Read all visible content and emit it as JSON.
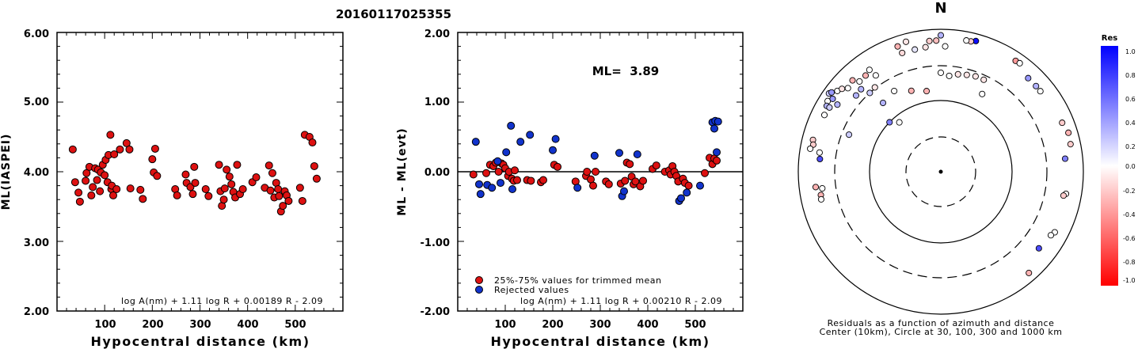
{
  "figure_title": "20160117025355",
  "chart_data": [
    {
      "type": "scatter",
      "xlabel": "Hypocentral distance (km)",
      "ylabel": "ML(IASPEI)",
      "xlim": [
        0,
        600
      ],
      "ylim": [
        2.0,
        6.0
      ],
      "x_ticks": [
        100,
        200,
        300,
        400,
        500
      ],
      "y_ticks": [
        "2.00",
        "3.00",
        "4.00",
        "5.00",
        "6.00"
      ],
      "formula": "log A(nm) + 1.11 log R + 0.00189 R - 2.09",
      "marker_color": "#dd1111",
      "series": [
        {
          "x": [
            33,
            38,
            45,
            48,
            60,
            62,
            68,
            72,
            75,
            80,
            84,
            86,
            90,
            92,
            96,
            100,
            102,
            106,
            108,
            112,
            114,
            115,
            118,
            120,
            125,
            132,
            146,
            152,
            154,
            175,
            180,
            200,
            203,
            206,
            210,
            248,
            252,
            270,
            272,
            280,
            285,
            288,
            290,
            312,
            318,
            340,
            343,
            346,
            350,
            352,
            356,
            362,
            366,
            370,
            374,
            378,
            384,
            390,
            410,
            418,
            436,
            445,
            448,
            452,
            456,
            460,
            464,
            466,
            470,
            474,
            478,
            482,
            486,
            510,
            515,
            520,
            530,
            536,
            540,
            545
          ],
          "y": [
            4.32,
            3.85,
            3.7,
            3.57,
            3.87,
            3.98,
            4.07,
            3.66,
            3.78,
            4.05,
            3.88,
            4.03,
            3.72,
            3.99,
            4.1,
            3.95,
            4.17,
            3.85,
            4.24,
            4.53,
            3.75,
            3.8,
            3.66,
            4.25,
            3.75,
            4.32,
            4.41,
            4.32,
            3.76,
            3.74,
            3.61,
            4.18,
            3.99,
            4.33,
            3.94,
            3.75,
            3.66,
            3.96,
            3.84,
            3.78,
            3.68,
            4.07,
            3.84,
            3.75,
            3.65,
            4.1,
            3.72,
            3.51,
            3.6,
            3.76,
            4.03,
            3.93,
            3.82,
            3.71,
            3.63,
            4.1,
            3.68,
            3.75,
            3.85,
            3.92,
            3.77,
            4.09,
            3.73,
            3.98,
            3.63,
            3.84,
            3.75,
            3.65,
            3.43,
            3.51,
            3.72,
            3.66,
            3.58,
            3.77,
            3.58,
            4.53,
            4.5,
            4.42,
            4.08,
            3.9
          ]
        }
      ]
    },
    {
      "type": "scatter",
      "xlabel": "Hypocentral distance (km)",
      "ylabel": "ML - ML(evt)",
      "xlim": [
        0,
        600
      ],
      "ylim": [
        -2.0,
        2.0
      ],
      "x_ticks": [
        100,
        200,
        300,
        400,
        500
      ],
      "y_ticks": [
        "-2.00",
        "-1.00",
        "0.00",
        "1.00",
        "2.00"
      ],
      "annotation": "ML=  3.89",
      "formula": "log A(nm) + 1.11 log R + 0.00210 R - 2.09",
      "reference_line_y": 0,
      "legend_position": "bottom-left",
      "series": [
        {
          "name": "25%-75% values for trimmed mean",
          "color": "#dd1111",
          "x": [
            33,
            60,
            68,
            75,
            80,
            86,
            92,
            96,
            100,
            106,
            108,
            114,
            118,
            120,
            125,
            146,
            154,
            175,
            180,
            203,
            210,
            248,
            270,
            272,
            280,
            285,
            290,
            312,
            318,
            343,
            352,
            356,
            362,
            366,
            370,
            374,
            384,
            390,
            410,
            418,
            436,
            445,
            448,
            452,
            456,
            460,
            464,
            474,
            478,
            486,
            520,
            530,
            536,
            540,
            545
          ],
          "y": [
            -0.04,
            -0.02,
            0.1,
            0.08,
            0.13,
            0.0,
            0.12,
            0.1,
            0.05,
            -0.06,
            0.0,
            -0.1,
            -0.13,
            0.02,
            -0.12,
            -0.12,
            -0.13,
            -0.15,
            -0.12,
            0.1,
            0.07,
            -0.14,
            -0.06,
            0.0,
            -0.11,
            -0.2,
            0.0,
            -0.14,
            -0.18,
            -0.17,
            -0.13,
            0.13,
            0.11,
            -0.07,
            -0.18,
            -0.14,
            -0.21,
            -0.13,
            0.04,
            0.09,
            0.0,
            0.02,
            -0.04,
            0.08,
            0.0,
            -0.06,
            -0.14,
            -0.1,
            -0.16,
            -0.2,
            -0.02,
            0.2,
            0.11,
            0.19,
            0.16
          ]
        },
        {
          "name": "Rejected values",
          "color": "#1133cc",
          "x": [
            38,
            45,
            48,
            62,
            72,
            84,
            90,
            102,
            112,
            115,
            132,
            152,
            200,
            206,
            252,
            288,
            340,
            346,
            350,
            378,
            466,
            470,
            482,
            510,
            536,
            540,
            542,
            545,
            548
          ],
          "y": [
            0.43,
            -0.18,
            -0.32,
            -0.19,
            -0.23,
            0.15,
            -0.16,
            0.28,
            0.66,
            -0.25,
            0.43,
            0.53,
            0.31,
            0.47,
            -0.23,
            0.23,
            0.27,
            -0.35,
            -0.28,
            0.25,
            -0.42,
            -0.38,
            -0.3,
            -0.2,
            0.71,
            0.62,
            0.73,
            0.28,
            0.72
          ]
        }
      ]
    },
    {
      "type": "scatter",
      "subtype": "polar residual map",
      "north_label": "N",
      "caption_line1": "Residuals as a function of azimuth and distance",
      "caption_line2": "Center (10km), Circle at 30, 100, 300 and 1000 km",
      "colorbar": {
        "title": "Res",
        "range": [
          -1.0,
          1.0
        ],
        "tick_labels": [
          "1.0",
          "0.8",
          "0.6",
          "0.4",
          "0.2",
          "0.0",
          "-0.2",
          "-0.4",
          "-0.6",
          "-0.8",
          "-1.0"
        ],
        "high_color": "#0000ff",
        "low_color": "#ff0000",
        "mid_color": "#ffffff"
      },
      "stations": [
        {
          "azimuth": 0,
          "distance_km": 820,
          "res": 0.3
        },
        {
          "azimuth": 353,
          "distance_km": 570,
          "res": -0.1
        },
        {
          "azimuth": 2,
          "distance_km": 570,
          "res": 0.0
        },
        {
          "azimuth": 342,
          "distance_km": 560,
          "res": -0.15
        },
        {
          "azimuth": 348,
          "distance_km": 560,
          "res": 0.1
        },
        {
          "azimuth": 355,
          "distance_km": 690,
          "res": -0.2
        },
        {
          "azimuth": 358,
          "distance_km": 690,
          "res": -0.25
        },
        {
          "azimuth": 341,
          "distance_km": 720,
          "res": -0.3
        },
        {
          "azimuth": 345,
          "distance_km": 770,
          "res": -0.1
        },
        {
          "azimuth": 15,
          "distance_km": 790,
          "res": 0.95
        },
        {
          "azimuth": 13,
          "distance_km": 750,
          "res": -0.2
        },
        {
          "azimuth": 11,
          "distance_km": 750,
          "res": 0.0
        },
        {
          "azimuth": 34,
          "distance_km": 750,
          "res": -0.4
        },
        {
          "azimuth": 36,
          "distance_km": 760,
          "res": 0.0
        },
        {
          "azimuth": 0,
          "distance_km": 240,
          "res": 0.0
        },
        {
          "azimuth": 5,
          "distance_km": 220,
          "res": 0.0
        },
        {
          "azimuth": 10,
          "distance_km": 240,
          "res": -0.1
        },
        {
          "azimuth": 15,
          "distance_km": 250,
          "res": -0.1
        },
        {
          "azimuth": 20,
          "distance_km": 260,
          "res": -0.1
        },
        {
          "azimuth": 25,
          "distance_km": 260,
          "res": -0.1
        },
        {
          "azimuth": 340,
          "distance_km": 160,
          "res": -0.3
        },
        {
          "azimuth": 350,
          "distance_km": 140,
          "res": -0.3
        },
        {
          "azimuth": 28,
          "distance_km": 170,
          "res": 0.0
        },
        {
          "azimuth": 330,
          "distance_km": 200,
          "res": 0.0
        },
        {
          "azimuth": 320,
          "distance_km": 180,
          "res": 0.3
        },
        {
          "azimuth": 292,
          "distance_km": 240,
          "res": 0.2
        },
        {
          "azimuth": 314,
          "distance_km": 100,
          "res": 0.5
        },
        {
          "azimuth": 320,
          "distance_km": 80,
          "res": 0.0
        },
        {
          "azimuth": 318,
          "distance_km": 300,
          "res": 0.2
        },
        {
          "azimuth": 322,
          "distance_km": 310,
          "res": -0.1
        },
        {
          "azimuth": 316,
          "distance_km": 400,
          "res": 0.3
        },
        {
          "azimuth": 312,
          "distance_km": 390,
          "res": 0.3
        },
        {
          "azimuth": 326,
          "distance_km": 420,
          "res": 0.0
        },
        {
          "azimuth": 318,
          "distance_km": 500,
          "res": 0.0
        },
        {
          "azimuth": 322,
          "distance_km": 510,
          "res": -0.3
        },
        {
          "azimuth": 325,
          "distance_km": 550,
          "res": 0.0
        },
        {
          "azimuth": 305,
          "distance_km": 820,
          "res": 0.2
        },
        {
          "azimuth": 306,
          "distance_km": 780,
          "res": 0.4
        },
        {
          "azimuth": 302,
          "distance_km": 740,
          "res": 0.0
        },
        {
          "azimuth": 300,
          "distance_km": 700,
          "res": 0.3
        },
        {
          "azimuth": 304,
          "distance_km": 670,
          "res": 0.4
        },
        {
          "azimuth": 300,
          "distance_km": 630,
          "res": 0.2
        },
        {
          "azimuth": 296,
          "distance_km": 650,
          "res": 0.0
        },
        {
          "azimuth": 308,
          "distance_km": 690,
          "res": 0.0
        },
        {
          "azimuth": 310,
          "distance_km": 640,
          "res": -0.1
        },
        {
          "azimuth": 312,
          "distance_km": 560,
          "res": 0.0
        },
        {
          "azimuth": 316,
          "distance_km": 600,
          "res": -0.3
        },
        {
          "azimuth": 303,
          "distance_km": 530,
          "res": 0.3
        },
        {
          "azimuth": 284,
          "distance_km": 700,
          "res": -0.2
        },
        {
          "azimuth": 282,
          "distance_km": 670,
          "res": -0.2
        },
        {
          "azimuth": 280,
          "distance_km": 720,
          "res": 0.0
        },
        {
          "azimuth": 276,
          "distance_km": 500,
          "res": 0.7
        },
        {
          "azimuth": 279,
          "distance_km": 520,
          "res": 0.0
        },
        {
          "azimuth": 263,
          "distance_km": 580,
          "res": -0.3
        },
        {
          "azimuth": 262,
          "distance_km": 470,
          "res": 0.0
        },
        {
          "azimuth": 259,
          "distance_km": 510,
          "res": -0.3
        },
        {
          "azimuth": 257,
          "distance_km": 520,
          "res": 0.0
        },
        {
          "azimuth": 43,
          "distance_km": 620,
          "res": 0.4
        },
        {
          "azimuth": 48,
          "distance_km": 620,
          "res": 0.3
        },
        {
          "azimuth": 51,
          "distance_km": 620,
          "res": 0.0
        },
        {
          "azimuth": 68,
          "distance_km": 680,
          "res": -0.2
        },
        {
          "azimuth": 73,
          "distance_km": 740,
          "res": -0.3
        },
        {
          "azimuth": 78,
          "distance_km": 720,
          "res": -0.2
        },
        {
          "azimuth": 84,
          "distance_km": 560,
          "res": 0.5
        },
        {
          "azimuth": 100,
          "distance_km": 600,
          "res": 0.0
        },
        {
          "azimuth": 101,
          "distance_km": 560,
          "res": -0.2
        },
        {
          "azimuth": 118,
          "distance_km": 640,
          "res": 0.0
        },
        {
          "azimuth": 120,
          "distance_km": 600,
          "res": 0.0
        },
        {
          "azimuth": 128,
          "distance_km": 550,
          "res": 0.7
        },
        {
          "azimuth": 139,
          "distance_km": 760,
          "res": -0.3
        }
      ]
    }
  ]
}
